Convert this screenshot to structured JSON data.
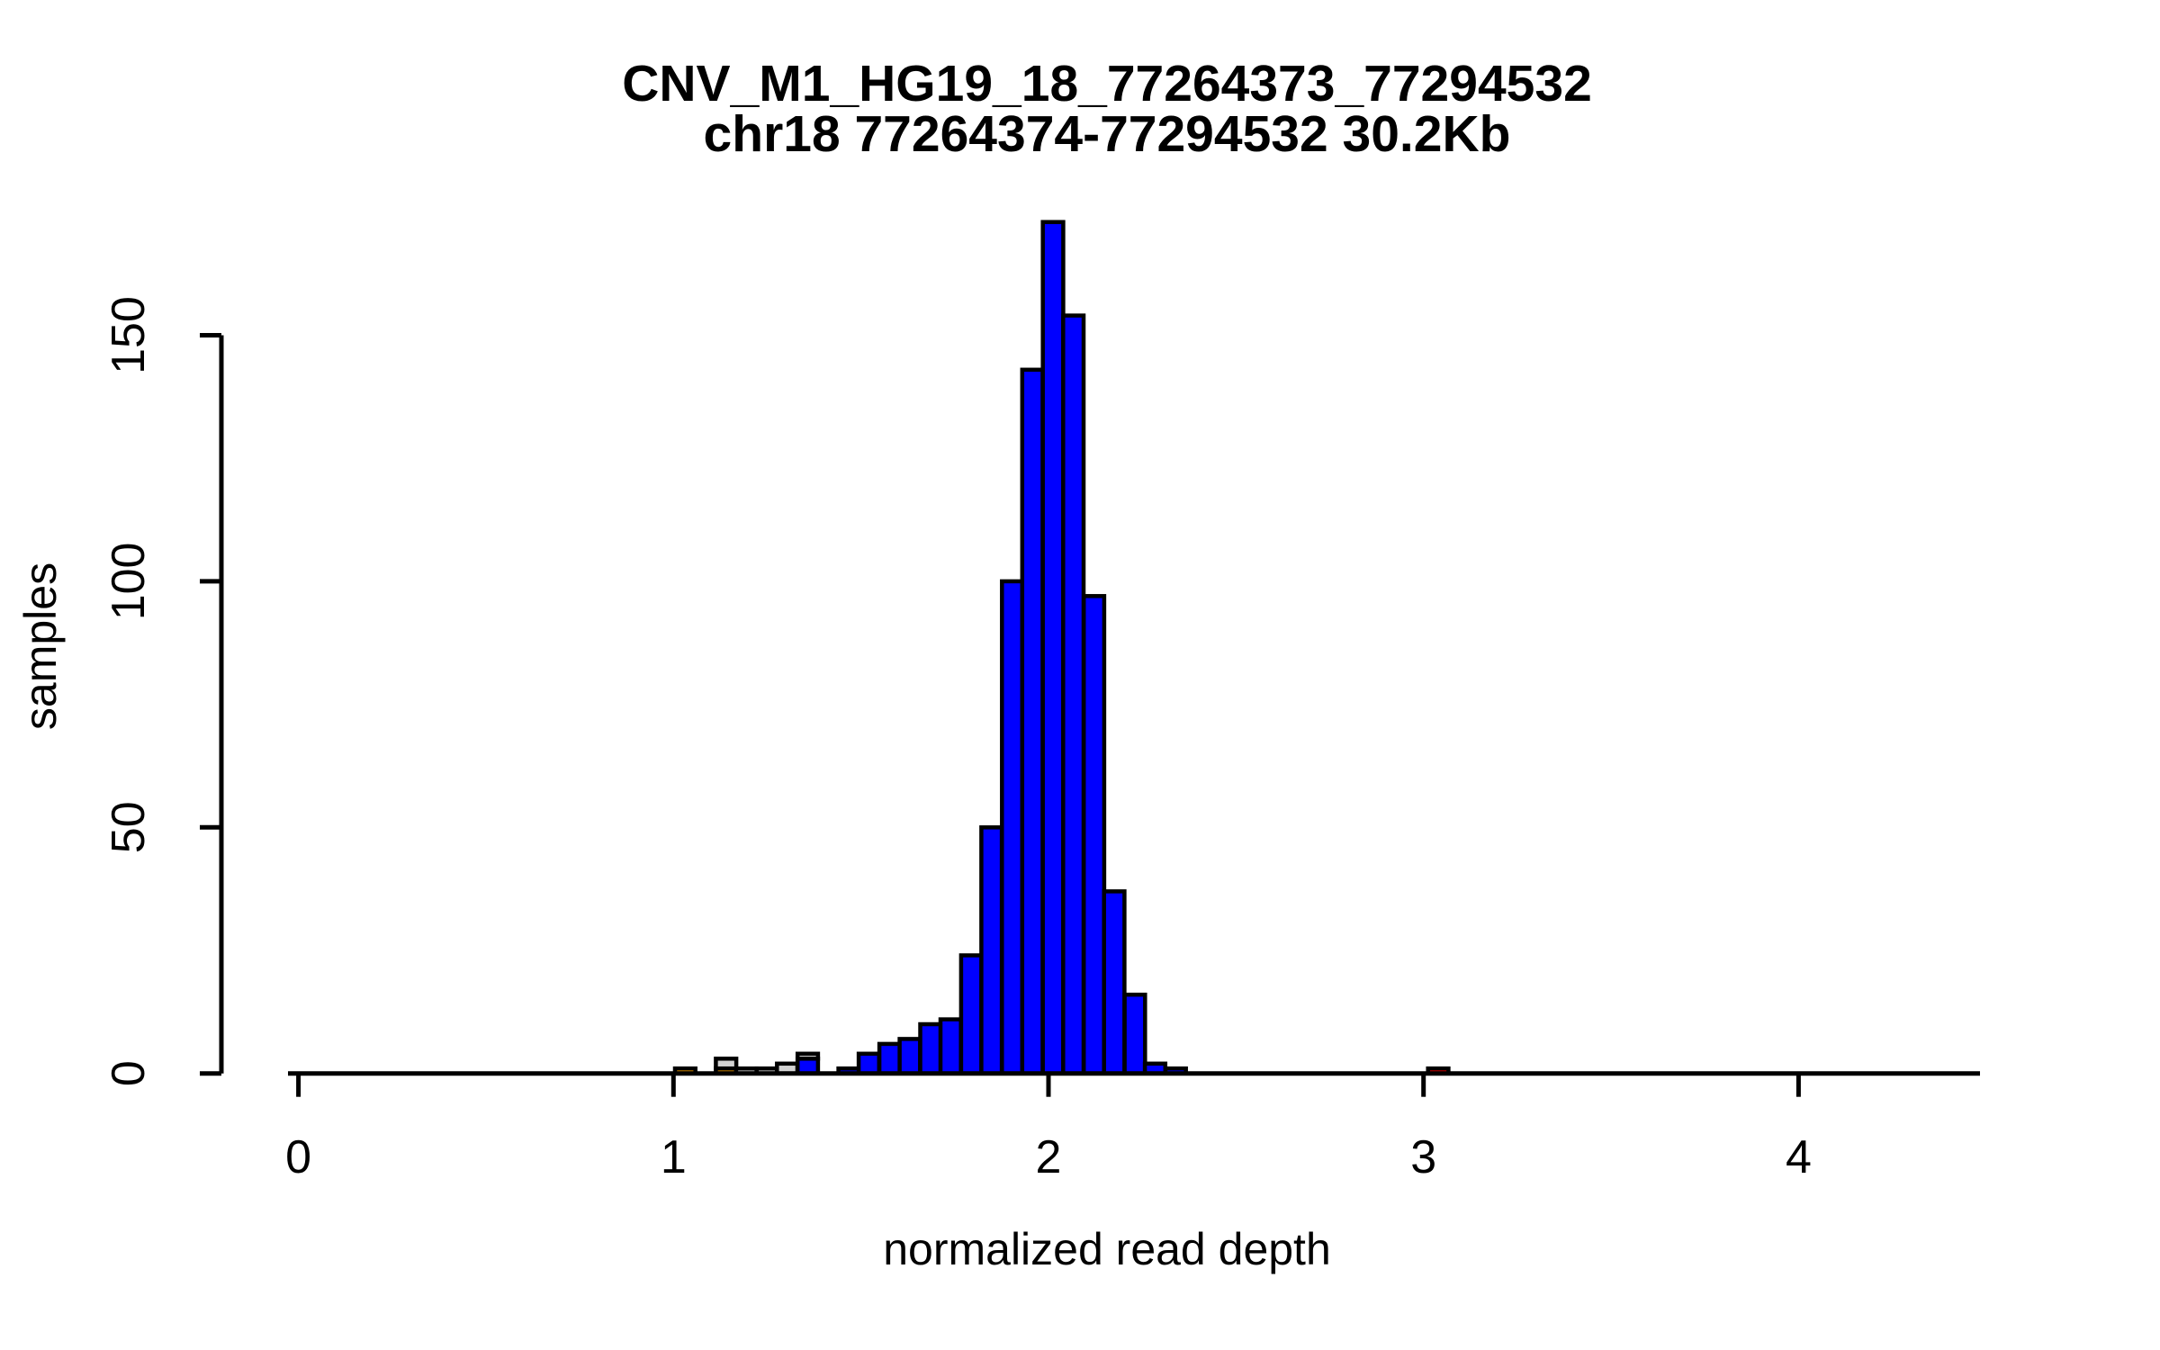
{
  "figure": {
    "title": "CNV_M1_HG19_18_77264373_77294532",
    "subtitle": "chr18 77264374-77294532 30.2Kb",
    "xlabel": "normalized read depth",
    "ylabel": "samples"
  },
  "chart_data": {
    "type": "bar",
    "subtype": "stacked-histogram",
    "title": "CNV_M1_HG19_18_77264373_77294532",
    "subtitle": "chr18 77264374-77294532 30.2Kb",
    "xlabel": "normalized read depth",
    "ylabel": "samples",
    "grid": false,
    "legend": null,
    "xlim": [
      -0.03,
      4.51
    ],
    "ylim": [
      0,
      173
    ],
    "x_ticks": [
      0,
      1,
      2,
      3,
      4
    ],
    "x_tick_labels": [
      "0",
      "1",
      "2",
      "3",
      "4"
    ],
    "y_ticks": [
      0,
      50,
      100,
      150
    ],
    "y_tick_labels": [
      "0",
      "50",
      "100",
      "150"
    ],
    "bar_edge_color": "#000000",
    "colors": {
      "blue": "#0000FF",
      "gray": "#D3D3D3",
      "orange": "#FFA500",
      "red": "#FF0000"
    },
    "bin_width": 0.0545,
    "bins": [
      {
        "start": 1.004,
        "segments": [
          [
            "orange",
            1
          ]
        ]
      },
      {
        "start": 1.113,
        "segments": [
          [
            "orange",
            1
          ],
          [
            "gray",
            2
          ]
        ]
      },
      {
        "start": 1.167,
        "segments": [
          [
            "gray",
            1
          ]
        ]
      },
      {
        "start": 1.222,
        "segments": [
          [
            "gray",
            1
          ]
        ]
      },
      {
        "start": 1.276,
        "segments": [
          [
            "gray",
            2
          ]
        ]
      },
      {
        "start": 1.331,
        "segments": [
          [
            "blue",
            3
          ],
          [
            "gray",
            1
          ]
        ]
      },
      {
        "start": 1.44,
        "segments": [
          [
            "blue",
            1
          ]
        ]
      },
      {
        "start": 1.494,
        "segments": [
          [
            "blue",
            4
          ]
        ]
      },
      {
        "start": 1.549,
        "segments": [
          [
            "blue",
            6
          ]
        ]
      },
      {
        "start": 1.603,
        "segments": [
          [
            "blue",
            7
          ]
        ]
      },
      {
        "start": 1.658,
        "segments": [
          [
            "blue",
            10
          ]
        ]
      },
      {
        "start": 1.712,
        "segments": [
          [
            "blue",
            11
          ]
        ]
      },
      {
        "start": 1.767,
        "segments": [
          [
            "blue",
            24
          ]
        ]
      },
      {
        "start": 1.821,
        "segments": [
          [
            "blue",
            50
          ]
        ]
      },
      {
        "start": 1.876,
        "segments": [
          [
            "blue",
            100
          ]
        ]
      },
      {
        "start": 1.93,
        "segments": [
          [
            "blue",
            143
          ]
        ]
      },
      {
        "start": 1.985,
        "segments": [
          [
            "blue",
            173
          ]
        ]
      },
      {
        "start": 2.039,
        "segments": [
          [
            "blue",
            154
          ]
        ]
      },
      {
        "start": 2.094,
        "segments": [
          [
            "blue",
            97
          ]
        ]
      },
      {
        "start": 2.148,
        "segments": [
          [
            "blue",
            37
          ]
        ]
      },
      {
        "start": 2.203,
        "segments": [
          [
            "blue",
            16
          ]
        ]
      },
      {
        "start": 2.257,
        "segments": [
          [
            "blue",
            2
          ]
        ]
      },
      {
        "start": 2.312,
        "segments": [
          [
            "blue",
            1
          ]
        ]
      },
      {
        "start": 3.012,
        "segments": [
          [
            "red",
            1
          ]
        ]
      }
    ]
  }
}
